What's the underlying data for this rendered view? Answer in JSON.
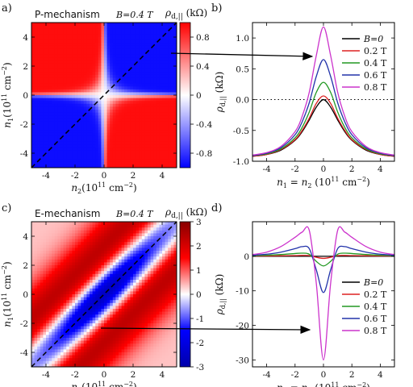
{
  "figure": {
    "panels": [
      {
        "id": "a",
        "label": "a)",
        "mechanism": "P-mechanism",
        "field_note": "B=0.4 T",
        "cbar_title": "ρd,|| (kΩ)"
      },
      {
        "id": "b",
        "label": "b)"
      },
      {
        "id": "c",
        "label": "c)",
        "mechanism": "E-mechanism",
        "field_note": "B=0.4 T",
        "cbar_title": "ρd,|| (kΩ)"
      },
      {
        "id": "d",
        "label": "d)"
      }
    ]
  },
  "chart_data": [
    {
      "panel": "a",
      "type": "heatmap",
      "title": "P-mechanism",
      "annotation": "B=0.4 T",
      "xlabel": "n2(10^11 cm^-2)",
      "ylabel": "n1(10^11 cm^-2)",
      "xlim": [
        -5,
        5
      ],
      "ylim": [
        -5,
        5
      ],
      "xticks": [
        "-4",
        "-2",
        "0",
        "2",
        "4"
      ],
      "yticks": [
        "-4",
        "-2",
        "0",
        "2",
        "4"
      ],
      "colorbar": {
        "label": "ρd,|| (kΩ)",
        "range": [
          -1,
          1
        ],
        "ticks": [
          "0.8",
          "0.4",
          "0",
          "-0.4",
          "-0.8"
        ],
        "colors": [
          "#0000ff",
          "#ffffff",
          "#ff0000"
        ]
      },
      "pattern": "positive in quadrants n1>0,n2<0 and n1<0,n2>0; negative in quadrants n1>0,n2>0 and n1<0,n2<0",
      "diagonal_line": "n1 = n2 (dashed)"
    },
    {
      "panel": "b",
      "type": "line",
      "xlabel": "n1 = n2 (10^11 cm^-2)",
      "ylabel": "ρd,|| (kΩ)",
      "xlim": [
        -5,
        5
      ],
      "ylim": [
        -1.0,
        1.25
      ],
      "xticks": [
        "-4",
        "-2",
        "0",
        "2",
        "4"
      ],
      "yticks": [
        "-1.0",
        "-0.5",
        "0.0",
        "0.5",
        "1.0"
      ],
      "zero_line": "dotted",
      "legend_position": "top-right",
      "x": [
        -5,
        -4,
        -3,
        -2,
        -1.5,
        -1,
        -0.5,
        0,
        0.5,
        1,
        1.5,
        2,
        3,
        4,
        5
      ],
      "series": [
        {
          "name": "B=0",
          "color": "#000000",
          "values": [
            -0.92,
            -0.89,
            -0.82,
            -0.66,
            -0.52,
            -0.33,
            -0.12,
            0.0,
            -0.12,
            -0.33,
            -0.52,
            -0.66,
            -0.82,
            -0.89,
            -0.92
          ]
        },
        {
          "name": "0.2 T",
          "color": "#dd2222",
          "values": [
            -0.92,
            -0.89,
            -0.81,
            -0.65,
            -0.5,
            -0.3,
            -0.06,
            0.06,
            -0.06,
            -0.3,
            -0.5,
            -0.65,
            -0.81,
            -0.89,
            -0.92
          ]
        },
        {
          "name": "0.4 T",
          "color": "#229922",
          "values": [
            -0.91,
            -0.88,
            -0.8,
            -0.62,
            -0.45,
            -0.2,
            0.12,
            0.28,
            0.12,
            -0.2,
            -0.45,
            -0.62,
            -0.8,
            -0.88,
            -0.91
          ]
        },
        {
          "name": "0.6 T",
          "color": "#2233aa",
          "values": [
            -0.91,
            -0.87,
            -0.78,
            -0.57,
            -0.36,
            -0.05,
            0.38,
            0.65,
            0.38,
            -0.05,
            -0.36,
            -0.57,
            -0.78,
            -0.87,
            -0.91
          ]
        },
        {
          "name": "0.8 T",
          "color": "#cc33cc",
          "values": [
            -0.9,
            -0.86,
            -0.76,
            -0.52,
            -0.27,
            0.12,
            0.72,
            1.18,
            0.72,
            0.12,
            -0.27,
            -0.52,
            -0.76,
            -0.86,
            -0.9
          ]
        }
      ]
    },
    {
      "panel": "c",
      "type": "heatmap",
      "title": "E-mechanism",
      "annotation": "B=0.4 T",
      "xlabel": "n2(10^11 cm^-2)",
      "ylabel": "n1(10^11 cm^-2)",
      "xlim": [
        -5,
        5
      ],
      "ylim": [
        -5,
        5
      ],
      "xticks": [
        "-4",
        "-2",
        "0",
        "2",
        "4"
      ],
      "yticks": [
        "-4",
        "-2",
        "0",
        "2",
        "4"
      ],
      "colorbar": {
        "label": "ρd,|| (kΩ)",
        "range": [
          -3,
          3
        ],
        "ticks": [
          "3",
          "2",
          "1",
          "0",
          "-1",
          "-2",
          "-3"
        ],
        "colors": [
          "#0000aa",
          "#0000ff",
          "#ffffff",
          "#ff0000",
          "#880000"
        ]
      },
      "pattern": "negative valley along the n1 = n2 diagonal, positive lobes off-diagonal near (n1,n2) = (2.5,2.5) and (-2.5,-2.5)",
      "diagonal_line": "n1 = n2 (dashed)"
    },
    {
      "panel": "d",
      "type": "line",
      "xlabel": "n1 = n2 (10^11 cm^-2)",
      "ylabel": "ρd,|| (kΩ)",
      "xlim": [
        -5,
        5
      ],
      "ylim": [
        -32,
        10
      ],
      "xticks": [
        "-4",
        "-2",
        "0",
        "2",
        "4"
      ],
      "yticks": [
        "0",
        "-10",
        "-20",
        "-30"
      ],
      "legend_position": "bottom-right",
      "x": [
        -5,
        -4,
        -3,
        -2,
        -1.5,
        -1,
        -0.5,
        0,
        0.5,
        1,
        1.5,
        2,
        3,
        4,
        5
      ],
      "series": [
        {
          "name": "B=0",
          "color": "#000000",
          "values": [
            0,
            0,
            0,
            0,
            0,
            0,
            0,
            0,
            0,
            0,
            0,
            0,
            0,
            0,
            0
          ]
        },
        {
          "name": "0.2 T",
          "color": "#dd2222",
          "values": [
            0.1,
            0.1,
            0.15,
            0.2,
            0.25,
            0.2,
            -0.3,
            -0.6,
            -0.3,
            0.2,
            0.25,
            0.2,
            0.15,
            0.1,
            0.1
          ]
        },
        {
          "name": "0.4 T",
          "color": "#229922",
          "values": [
            0.2,
            0.3,
            0.5,
            0.8,
            0.9,
            0.6,
            -1.5,
            -2.8,
            -1.5,
            0.6,
            0.9,
            0.8,
            0.5,
            0.3,
            0.2
          ]
        },
        {
          "name": "0.6 T",
          "color": "#2233aa",
          "values": [
            0.3,
            0.6,
            1.2,
            2.2,
            2.8,
            2.2,
            -4.0,
            -10.5,
            -4.0,
            2.2,
            2.8,
            2.2,
            1.2,
            0.6,
            0.3
          ]
        },
        {
          "name": "0.8 T",
          "color": "#cc33cc",
          "values": [
            0.5,
            1.2,
            2.8,
            5.5,
            7.0,
            7.5,
            -8.0,
            -30.0,
            -8.0,
            7.5,
            7.0,
            5.5,
            2.8,
            1.2,
            0.5
          ]
        }
      ]
    }
  ]
}
